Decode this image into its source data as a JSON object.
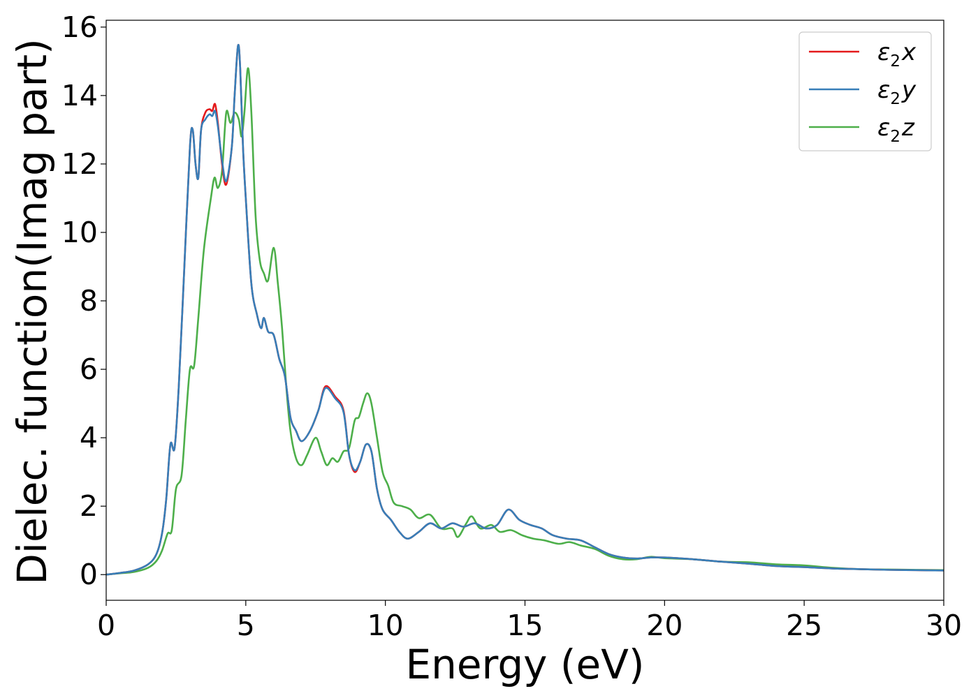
{
  "chart_data": {
    "type": "line",
    "xlabel": "Energy (eV)",
    "ylabel": "Dielec. function(Imag part)",
    "xlim": [
      0,
      30
    ],
    "ylim": [
      -0.75,
      16.2
    ],
    "xticks": [
      0,
      5,
      10,
      15,
      20,
      25,
      30
    ],
    "yticks": [
      0,
      2,
      4,
      6,
      8,
      10,
      12,
      14,
      16
    ],
    "grid": false,
    "legend_position": "top-right",
    "series": [
      {
        "legend": {
          "symbol": "ε",
          "sub": "2",
          "axis": "x"
        },
        "color": "#e41a1c",
        "points": [
          [
            0,
            0.0
          ],
          [
            0.5,
            0.05
          ],
          [
            1.0,
            0.12
          ],
          [
            1.5,
            0.3
          ],
          [
            1.8,
            0.6
          ],
          [
            2.0,
            1.2
          ],
          [
            2.15,
            2.2
          ],
          [
            2.3,
            3.8
          ],
          [
            2.45,
            3.7
          ],
          [
            2.6,
            5.5
          ],
          [
            2.8,
            9.0
          ],
          [
            3.0,
            12.5
          ],
          [
            3.1,
            13.0
          ],
          [
            3.2,
            12.0
          ],
          [
            3.3,
            11.6
          ],
          [
            3.4,
            13.0
          ],
          [
            3.55,
            13.5
          ],
          [
            3.7,
            13.6
          ],
          [
            3.8,
            13.55
          ],
          [
            3.9,
            13.75
          ],
          [
            4.0,
            13.2
          ],
          [
            4.15,
            12.0
          ],
          [
            4.3,
            11.4
          ],
          [
            4.5,
            12.5
          ],
          [
            4.6,
            14.0
          ],
          [
            4.72,
            15.45
          ],
          [
            4.8,
            14.8
          ],
          [
            4.9,
            12.5
          ],
          [
            5.0,
            11.0
          ],
          [
            5.2,
            8.5
          ],
          [
            5.4,
            7.6
          ],
          [
            5.55,
            7.2
          ],
          [
            5.65,
            7.5
          ],
          [
            5.8,
            7.1
          ],
          [
            6.0,
            7.0
          ],
          [
            6.2,
            6.3
          ],
          [
            6.4,
            5.8
          ],
          [
            6.6,
            4.6
          ],
          [
            6.8,
            4.2
          ],
          [
            7.0,
            3.9
          ],
          [
            7.3,
            4.2
          ],
          [
            7.6,
            4.8
          ],
          [
            7.85,
            5.5
          ],
          [
            8.2,
            5.2
          ],
          [
            8.5,
            4.8
          ],
          [
            8.7,
            3.5
          ],
          [
            8.9,
            3.0
          ],
          [
            9.1,
            3.3
          ],
          [
            9.3,
            3.8
          ],
          [
            9.5,
            3.6
          ],
          [
            9.7,
            2.5
          ],
          [
            9.9,
            1.9
          ],
          [
            10.2,
            1.6
          ],
          [
            10.5,
            1.25
          ],
          [
            10.8,
            1.05
          ],
          [
            11.2,
            1.25
          ],
          [
            11.6,
            1.5
          ],
          [
            12.0,
            1.35
          ],
          [
            12.4,
            1.5
          ],
          [
            12.8,
            1.4
          ],
          [
            13.2,
            1.5
          ],
          [
            13.6,
            1.35
          ],
          [
            14.0,
            1.45
          ],
          [
            14.4,
            1.9
          ],
          [
            14.8,
            1.6
          ],
          [
            15.2,
            1.45
          ],
          [
            15.6,
            1.35
          ],
          [
            16.0,
            1.15
          ],
          [
            16.5,
            1.05
          ],
          [
            17.0,
            1.0
          ],
          [
            17.5,
            0.8
          ],
          [
            18.0,
            0.6
          ],
          [
            18.5,
            0.5
          ],
          [
            19.0,
            0.47
          ],
          [
            19.5,
            0.5
          ],
          [
            20.0,
            0.5
          ],
          [
            21.0,
            0.45
          ],
          [
            22.0,
            0.38
          ],
          [
            23.0,
            0.32
          ],
          [
            24.0,
            0.25
          ],
          [
            25.0,
            0.22
          ],
          [
            26.0,
            0.18
          ],
          [
            27.0,
            0.16
          ],
          [
            28.0,
            0.14
          ],
          [
            29.0,
            0.13
          ],
          [
            30.0,
            0.12
          ]
        ]
      },
      {
        "legend": {
          "symbol": "ε",
          "sub": "2",
          "axis": "y"
        },
        "color": "#377eb8",
        "points": [
          [
            0,
            0.0
          ],
          [
            0.5,
            0.05
          ],
          [
            1.0,
            0.12
          ],
          [
            1.5,
            0.3
          ],
          [
            1.8,
            0.6
          ],
          [
            2.0,
            1.2
          ],
          [
            2.15,
            2.2
          ],
          [
            2.3,
            3.8
          ],
          [
            2.45,
            3.7
          ],
          [
            2.6,
            5.5
          ],
          [
            2.8,
            9.0
          ],
          [
            3.0,
            12.5
          ],
          [
            3.1,
            13.0
          ],
          [
            3.2,
            12.0
          ],
          [
            3.3,
            11.6
          ],
          [
            3.4,
            13.0
          ],
          [
            3.55,
            13.3
          ],
          [
            3.7,
            13.45
          ],
          [
            3.8,
            13.4
          ],
          [
            3.9,
            13.55
          ],
          [
            4.0,
            13.1
          ],
          [
            4.15,
            12.1
          ],
          [
            4.3,
            11.5
          ],
          [
            4.5,
            12.5
          ],
          [
            4.6,
            14.0
          ],
          [
            4.72,
            15.45
          ],
          [
            4.8,
            14.8
          ],
          [
            4.9,
            12.5
          ],
          [
            5.0,
            11.0
          ],
          [
            5.2,
            8.5
          ],
          [
            5.4,
            7.6
          ],
          [
            5.55,
            7.2
          ],
          [
            5.65,
            7.5
          ],
          [
            5.8,
            7.1
          ],
          [
            6.0,
            7.0
          ],
          [
            6.2,
            6.3
          ],
          [
            6.4,
            5.8
          ],
          [
            6.6,
            4.6
          ],
          [
            6.8,
            4.2
          ],
          [
            7.0,
            3.9
          ],
          [
            7.3,
            4.2
          ],
          [
            7.6,
            4.8
          ],
          [
            7.85,
            5.45
          ],
          [
            8.2,
            5.15
          ],
          [
            8.5,
            4.75
          ],
          [
            8.7,
            3.5
          ],
          [
            8.9,
            3.05
          ],
          [
            9.1,
            3.3
          ],
          [
            9.3,
            3.8
          ],
          [
            9.5,
            3.6
          ],
          [
            9.7,
            2.5
          ],
          [
            9.9,
            1.9
          ],
          [
            10.2,
            1.6
          ],
          [
            10.5,
            1.25
          ],
          [
            10.8,
            1.05
          ],
          [
            11.2,
            1.25
          ],
          [
            11.6,
            1.5
          ],
          [
            12.0,
            1.35
          ],
          [
            12.4,
            1.5
          ],
          [
            12.8,
            1.4
          ],
          [
            13.2,
            1.5
          ],
          [
            13.6,
            1.35
          ],
          [
            14.0,
            1.45
          ],
          [
            14.4,
            1.9
          ],
          [
            14.8,
            1.6
          ],
          [
            15.2,
            1.45
          ],
          [
            15.6,
            1.35
          ],
          [
            16.0,
            1.15
          ],
          [
            16.5,
            1.05
          ],
          [
            17.0,
            1.0
          ],
          [
            17.5,
            0.8
          ],
          [
            18.0,
            0.6
          ],
          [
            18.5,
            0.5
          ],
          [
            19.0,
            0.47
          ],
          [
            19.5,
            0.5
          ],
          [
            20.0,
            0.5
          ],
          [
            21.0,
            0.45
          ],
          [
            22.0,
            0.38
          ],
          [
            23.0,
            0.32
          ],
          [
            24.0,
            0.25
          ],
          [
            25.0,
            0.22
          ],
          [
            26.0,
            0.18
          ],
          [
            27.0,
            0.16
          ],
          [
            28.0,
            0.14
          ],
          [
            29.0,
            0.13
          ],
          [
            30.0,
            0.12
          ]
        ]
      },
      {
        "legend": {
          "symbol": "ε",
          "sub": "2",
          "axis": "z"
        },
        "color": "#4daf4a",
        "points": [
          [
            0,
            0.0
          ],
          [
            0.5,
            0.04
          ],
          [
            1.0,
            0.08
          ],
          [
            1.5,
            0.2
          ],
          [
            1.8,
            0.4
          ],
          [
            2.0,
            0.7
          ],
          [
            2.2,
            1.2
          ],
          [
            2.35,
            1.3
          ],
          [
            2.5,
            2.5
          ],
          [
            2.7,
            2.9
          ],
          [
            2.85,
            4.5
          ],
          [
            3.0,
            6.0
          ],
          [
            3.15,
            6.1
          ],
          [
            3.3,
            7.5
          ],
          [
            3.5,
            9.5
          ],
          [
            3.75,
            11.0
          ],
          [
            3.88,
            11.6
          ],
          [
            4.0,
            11.3
          ],
          [
            4.15,
            11.8
          ],
          [
            4.3,
            13.5
          ],
          [
            4.45,
            13.2
          ],
          [
            4.6,
            13.5
          ],
          [
            4.75,
            13.3
          ],
          [
            4.85,
            12.8
          ],
          [
            4.95,
            13.5
          ],
          [
            5.08,
            14.8
          ],
          [
            5.2,
            13.5
          ],
          [
            5.35,
            10.5
          ],
          [
            5.5,
            9.2
          ],
          [
            5.65,
            8.8
          ],
          [
            5.8,
            8.6
          ],
          [
            6.0,
            9.55
          ],
          [
            6.15,
            8.5
          ],
          [
            6.3,
            7.2
          ],
          [
            6.45,
            5.5
          ],
          [
            6.6,
            4.2
          ],
          [
            6.8,
            3.4
          ],
          [
            7.0,
            3.2
          ],
          [
            7.2,
            3.5
          ],
          [
            7.5,
            4.0
          ],
          [
            7.7,
            3.6
          ],
          [
            7.9,
            3.2
          ],
          [
            8.1,
            3.4
          ],
          [
            8.3,
            3.3
          ],
          [
            8.5,
            3.6
          ],
          [
            8.7,
            3.7
          ],
          [
            8.9,
            4.5
          ],
          [
            9.05,
            4.6
          ],
          [
            9.2,
            5.0
          ],
          [
            9.35,
            5.3
          ],
          [
            9.5,
            5.0
          ],
          [
            9.7,
            4.0
          ],
          [
            9.9,
            3.0
          ],
          [
            10.1,
            2.6
          ],
          [
            10.3,
            2.1
          ],
          [
            10.6,
            2.0
          ],
          [
            10.9,
            1.9
          ],
          [
            11.2,
            1.65
          ],
          [
            11.6,
            1.75
          ],
          [
            12.0,
            1.35
          ],
          [
            12.4,
            1.35
          ],
          [
            12.6,
            1.1
          ],
          [
            12.9,
            1.5
          ],
          [
            13.1,
            1.7
          ],
          [
            13.4,
            1.35
          ],
          [
            13.8,
            1.45
          ],
          [
            14.1,
            1.25
          ],
          [
            14.5,
            1.3
          ],
          [
            14.9,
            1.15
          ],
          [
            15.3,
            1.05
          ],
          [
            15.7,
            1.0
          ],
          [
            16.2,
            0.9
          ],
          [
            16.6,
            0.95
          ],
          [
            17.0,
            0.85
          ],
          [
            17.5,
            0.75
          ],
          [
            18.0,
            0.55
          ],
          [
            18.5,
            0.45
          ],
          [
            19.0,
            0.45
          ],
          [
            19.5,
            0.52
          ],
          [
            20.0,
            0.48
          ],
          [
            21.0,
            0.45
          ],
          [
            22.0,
            0.38
          ],
          [
            23.0,
            0.36
          ],
          [
            24.0,
            0.3
          ],
          [
            25.0,
            0.27
          ],
          [
            26.0,
            0.2
          ],
          [
            27.0,
            0.16
          ],
          [
            28.0,
            0.15
          ],
          [
            29.0,
            0.14
          ],
          [
            30.0,
            0.13
          ]
        ]
      }
    ]
  }
}
